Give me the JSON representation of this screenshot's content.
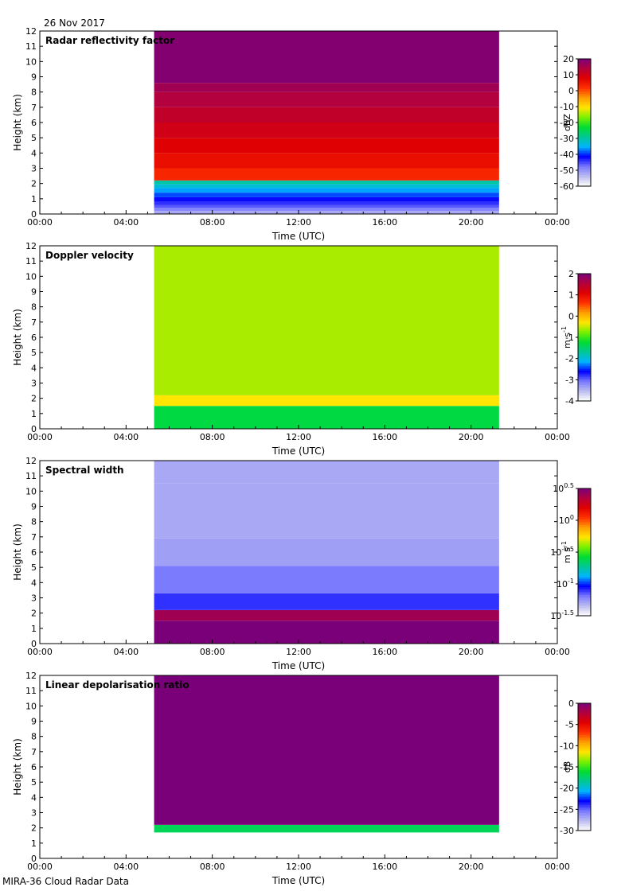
{
  "header": {
    "date": "26 Nov 2017"
  },
  "footer": {
    "source": "MIRA-36 Cloud Radar Data"
  },
  "colors": {
    "frame": "#000000",
    "colormap": [
      "#ffffff",
      "#bcbcf0",
      "#7878ff",
      "#0000ff",
      "#00b4ff",
      "#00c896",
      "#00dc32",
      "#78f000",
      "#ffe600",
      "#ffa000",
      "#ff3200",
      "#e00000",
      "#b4003c",
      "#7a007a"
    ]
  },
  "chart_data": [
    {
      "type": "heatmap",
      "title": "Radar reflectivity factor",
      "xlabel": "Time (UTC)",
      "ylabel": "Height (km)",
      "x_ticks": [
        "00:00",
        "04:00",
        "08:00",
        "12:00",
        "16:00",
        "20:00",
        "00:00"
      ],
      "xlim_hours": [
        0,
        24
      ],
      "y_ticks": [
        0,
        1,
        2,
        3,
        4,
        5,
        6,
        7,
        8,
        9,
        10,
        11,
        12
      ],
      "ylim": [
        0,
        12
      ],
      "data_time_range_hours": [
        5.3,
        21.3
      ],
      "colorbar": {
        "label": "dBZ",
        "range": [
          -60,
          20
        ],
        "ticks": [
          "20",
          "10",
          "0",
          "-10",
          "-20",
          "-30",
          "-40",
          "-50",
          "-60"
        ]
      },
      "layers": [
        {
          "from_km": 0.0,
          "to_km": 0.2,
          "value": -52
        },
        {
          "from_km": 0.2,
          "to_km": 0.4,
          "value": -49
        },
        {
          "from_km": 0.4,
          "to_km": 0.6,
          "value": -46
        },
        {
          "from_km": 0.6,
          "to_km": 0.8,
          "value": -44
        },
        {
          "from_km": 0.8,
          "to_km": 1.1,
          "value": -42
        },
        {
          "from_km": 1.1,
          "to_km": 1.4,
          "value": -39
        },
        {
          "from_km": 1.4,
          "to_km": 1.7,
          "value": -36
        },
        {
          "from_km": 1.7,
          "to_km": 1.95,
          "value": -33
        },
        {
          "from_km": 1.95,
          "to_km": 2.2,
          "value": -30
        },
        {
          "from_km": 2.2,
          "to_km": 3.0,
          "value": 3
        },
        {
          "from_km": 3.0,
          "to_km": 4.0,
          "value": 6
        },
        {
          "from_km": 4.0,
          "to_km": 5.0,
          "value": 8
        },
        {
          "from_km": 5.0,
          "to_km": 6.0,
          "value": 10
        },
        {
          "from_km": 6.0,
          "to_km": 7.0,
          "value": 12
        },
        {
          "from_km": 7.0,
          "to_km": 8.0,
          "value": 14
        },
        {
          "from_km": 8.0,
          "to_km": 8.6,
          "value": 16
        },
        {
          "from_km": 8.6,
          "to_km": 12.0,
          "value": 19
        }
      ]
    },
    {
      "type": "heatmap",
      "title": "Doppler velocity",
      "xlabel": "Time (UTC)",
      "ylabel": "Height (km)",
      "x_ticks": [
        "00:00",
        "04:00",
        "08:00",
        "12:00",
        "16:00",
        "20:00",
        "00:00"
      ],
      "xlim_hours": [
        0,
        24
      ],
      "y_ticks": [
        0,
        1,
        2,
        3,
        4,
        5,
        6,
        7,
        8,
        9,
        10,
        11,
        12
      ],
      "ylim": [
        0,
        12
      ],
      "data_time_range_hours": [
        5.3,
        21.3
      ],
      "colorbar": {
        "label": "m s",
        "label_sup": "-1",
        "range": [
          -4,
          2
        ],
        "ticks": [
          "2",
          "1",
          "0",
          "-1",
          "-2",
          "-3",
          "-4"
        ]
      },
      "layers": [
        {
          "from_km": 0.0,
          "to_km": 1.5,
          "value": -1.3
        },
        {
          "from_km": 1.5,
          "to_km": 2.2,
          "value": -0.3
        },
        {
          "from_km": 2.2,
          "to_km": 12.0,
          "value": -0.6
        }
      ]
    },
    {
      "type": "heatmap",
      "title": "Spectral width",
      "xlabel": "Time (UTC)",
      "ylabel": "Height (km)",
      "x_ticks": [
        "00:00",
        "04:00",
        "08:00",
        "12:00",
        "16:00",
        "20:00",
        "00:00"
      ],
      "xlim_hours": [
        0,
        24
      ],
      "y_ticks": [
        0,
        1,
        2,
        3,
        4,
        5,
        6,
        7,
        8,
        9,
        10,
        11,
        12
      ],
      "ylim": [
        0,
        12
      ],
      "data_time_range_hours": [
        5.3,
        21.3
      ],
      "colorbar": {
        "label": "m s",
        "label_sup": "-1",
        "scale": "log10",
        "range": [
          -1.5,
          0.5
        ],
        "ticks": [
          {
            "base": "10",
            "exp": "0.5"
          },
          {
            "base": "10",
            "exp": "0"
          },
          {
            "base": "10",
            "exp": "-0.5"
          },
          {
            "base": "10",
            "exp": "-1"
          },
          {
            "base": "10",
            "exp": "-1.5"
          }
        ]
      },
      "layers": [
        {
          "from_km": 0.0,
          "to_km": 1.5,
          "value": 0.5
        },
        {
          "from_km": 1.5,
          "to_km": 2.2,
          "value": 0.4
        },
        {
          "from_km": 2.2,
          "to_km": 3.3,
          "value": -1.1
        },
        {
          "from_km": 3.3,
          "to_km": 5.1,
          "value": -1.2
        },
        {
          "from_km": 5.1,
          "to_km": 6.9,
          "value": -1.28
        },
        {
          "from_km": 6.9,
          "to_km": 10.5,
          "value": -1.3
        },
        {
          "from_km": 10.5,
          "to_km": 12.0,
          "value": -1.3
        }
      ]
    },
    {
      "type": "heatmap",
      "title": "Linear depolarisation ratio",
      "xlabel": "Time (UTC)",
      "ylabel": "Height (km)",
      "x_ticks": [
        "00:00",
        "04:00",
        "08:00",
        "12:00",
        "16:00",
        "20:00",
        "00:00"
      ],
      "xlim_hours": [
        0,
        24
      ],
      "y_ticks": [
        0,
        1,
        2,
        3,
        4,
        5,
        6,
        7,
        8,
        9,
        10,
        11,
        12
      ],
      "ylim": [
        0,
        12
      ],
      "data_time_range_hours": [
        5.3,
        21.3
      ],
      "colorbar": {
        "label": "dB",
        "range": [
          -30,
          0
        ],
        "ticks": [
          "0",
          "-5",
          "-10",
          "-15",
          "-20",
          "-25",
          "-30"
        ]
      },
      "layers": [
        {
          "from_km": 1.7,
          "to_km": 2.2,
          "value": -17
        },
        {
          "from_km": 2.2,
          "to_km": 12.0,
          "value": 0
        }
      ]
    }
  ]
}
